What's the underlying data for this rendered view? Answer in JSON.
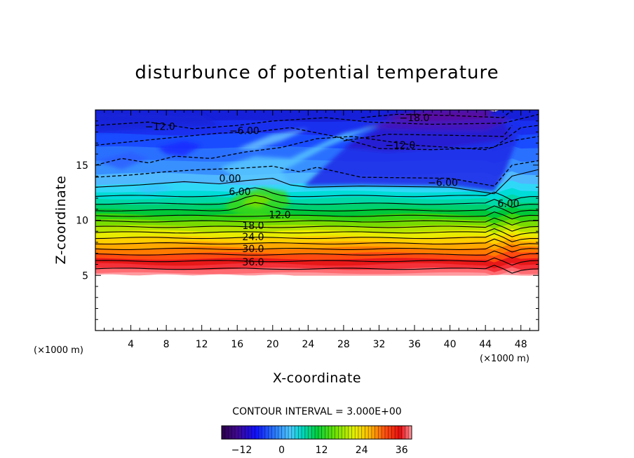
{
  "chart_data": {
    "type": "heatmap",
    "title": "disturbunce of potential temperature",
    "xlabel": "X-coordinate",
    "ylabel": "Z-coordinate",
    "x_unit_left": "(×1000 m)",
    "x_unit_right": "(×1000 m)",
    "xlim": [
      0,
      50
    ],
    "ylim": [
      0,
      20
    ],
    "x_ticks": [
      4,
      8,
      12,
      16,
      20,
      24,
      28,
      32,
      36,
      40,
      44,
      48
    ],
    "x_tick_labels": [
      "4",
      "8",
      "12",
      "16",
      "20",
      "24",
      "28",
      "32",
      "36",
      "40",
      "44",
      "48"
    ],
    "y_ticks": [
      5,
      10,
      15
    ],
    "y_tick_labels": [
      "5",
      "10",
      "15"
    ],
    "contour_interval_text": "CONTOUR INTERVAL = 3.000E+00",
    "contour_interval": 3.0,
    "colorbar": {
      "range": [
        -18,
        39
      ],
      "ticks": [
        -12,
        0,
        12,
        24,
        36
      ],
      "tick_labels": [
        "−12",
        "0",
        "12",
        "24",
        "36"
      ]
    },
    "contour_labels": [
      {
        "text": "−18.0",
        "x": 36.0,
        "z": 19.0
      },
      {
        "text": "−12.0",
        "x": 7.3,
        "z": 18.2
      },
      {
        "text": "−6.00",
        "x": 16.8,
        "z": 17.8
      },
      {
        "text": "−12.0",
        "x": 34.4,
        "z": 16.5
      },
      {
        "text": "0.00",
        "x": 15.2,
        "z": 13.5
      },
      {
        "text": "−6.00",
        "x": 39.2,
        "z": 13.1
      },
      {
        "text": "6.00",
        "x": 16.3,
        "z": 12.3
      },
      {
        "text": "6.00",
        "x": 46.6,
        "z": 11.2
      },
      {
        "text": "12.0",
        "x": 20.8,
        "z": 10.2
      },
      {
        "text": "18.0",
        "x": 17.8,
        "z": 9.2
      },
      {
        "text": "24.0",
        "x": 17.8,
        "z": 8.2
      },
      {
        "text": "30.0",
        "x": 17.8,
        "z": 7.1
      },
      {
        "text": "36.0",
        "x": 17.8,
        "z": 5.9
      }
    ]
  }
}
